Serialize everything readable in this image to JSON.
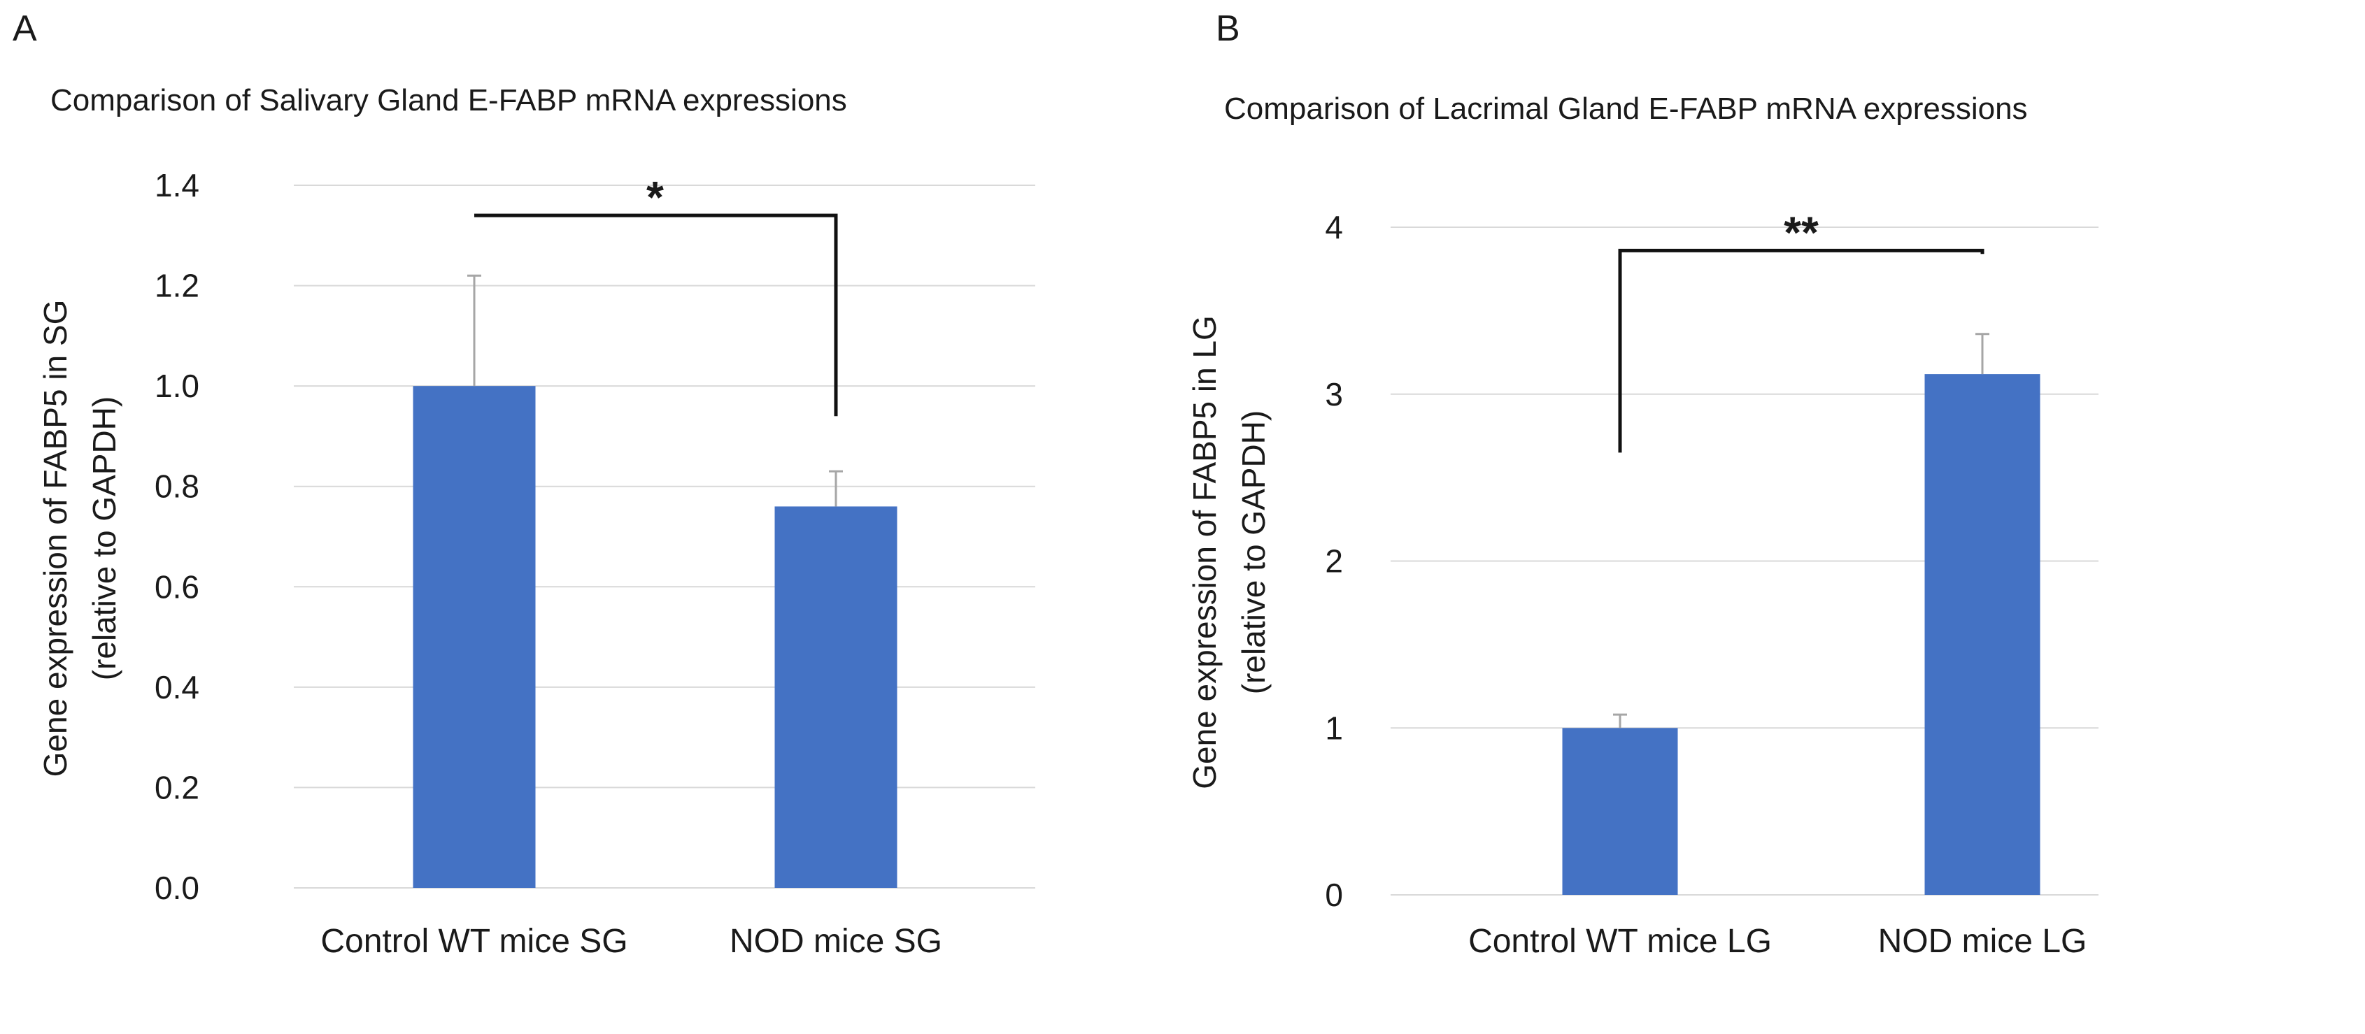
{
  "chart_data": [
    {
      "type": "bar",
      "panel": "A",
      "title": "Comparison of Salivary Gland E-FABP mRNA expressions",
      "xlabel": "",
      "ylabel_line1": "Gene expression of FABP5 in SG",
      "ylabel_line2": "(relative to GAPDH)",
      "categories": [
        "Control WT mice SG",
        "NOD mice SG"
      ],
      "values": [
        1.0,
        0.76
      ],
      "errors": [
        0.22,
        0.07
      ],
      "ylim": [
        0,
        1.4
      ],
      "yticks": [
        0,
        0.2,
        0.4,
        0.6,
        0.8,
        1.0,
        1.2,
        1.4
      ],
      "ytick_labels": [
        "0.0",
        "0.2",
        "0.4",
        "0.6",
        "0.8",
        "1.0",
        "1.2",
        "1.4"
      ],
      "grid": true,
      "significance": {
        "label": "*",
        "bracket_top": 1.34,
        "left_end": 1.34,
        "right_end": 0.94
      }
    },
    {
      "type": "bar",
      "panel": "B",
      "title": "Comparison of Lacrimal Gland E-FABP mRNA expressions",
      "xlabel": "",
      "ylabel_line1": "Gene expression of FABP5 in LG",
      "ylabel_line2": "(relative to GAPDH)",
      "categories": [
        "Control WT mice LG",
        "NOD mice LG"
      ],
      "values": [
        1.0,
        3.12
      ],
      "errors": [
        0.08,
        0.24
      ],
      "ylim": [
        0,
        4
      ],
      "yticks": [
        0,
        1,
        2,
        3,
        4
      ],
      "ytick_labels": [
        "0",
        "1",
        "2",
        "3",
        "4"
      ],
      "grid": true,
      "significance": {
        "label": "**",
        "bracket_top": 3.86,
        "left_end": 2.65,
        "right_end": 3.84
      }
    }
  ]
}
